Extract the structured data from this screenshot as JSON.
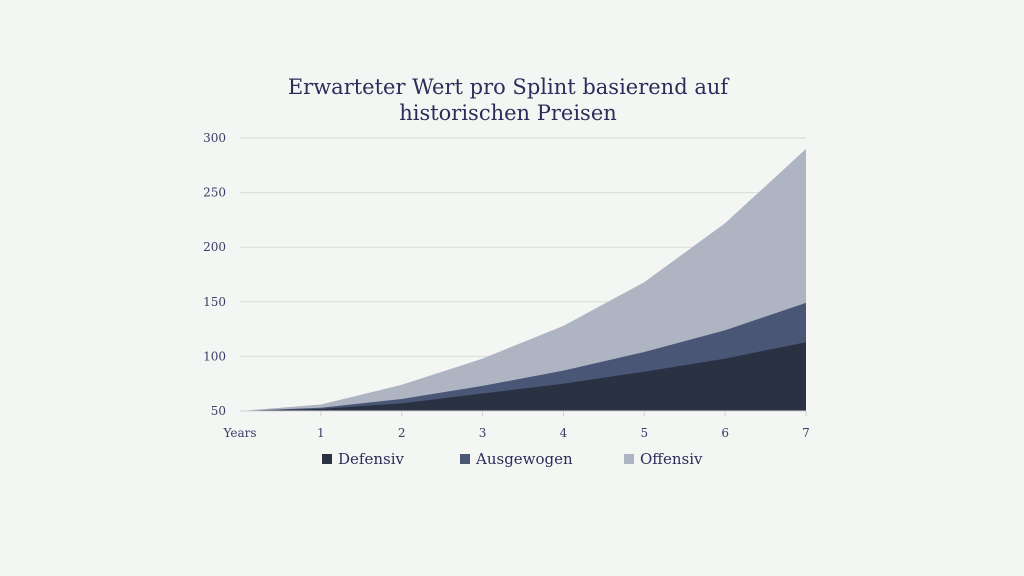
{
  "chart_data": {
    "type": "area",
    "stacked": false,
    "title_lines": [
      "Erwarteter Wert pro Splint basierend auf",
      "historischen Preisen"
    ],
    "xlabel": "Years",
    "x": [
      0,
      1,
      2,
      3,
      4,
      5,
      6,
      7
    ],
    "x_tick_labels": [
      "Years",
      "1",
      "2",
      "3",
      "4",
      "5",
      "6",
      "7"
    ],
    "ylim": [
      50,
      300
    ],
    "y_ticks": [
      50,
      100,
      150,
      200,
      250,
      300
    ],
    "grid": "horizontal",
    "legend_position": "bottom",
    "series": [
      {
        "name": "Offensiv",
        "color": "#aeb4c1",
        "values": [
          50,
          56,
          74,
          98,
          128,
          168,
          222,
          290
        ]
      },
      {
        "name": "Ausgewogen",
        "color": "#4a5675",
        "values": [
          50,
          53,
          61,
          73,
          87,
          104,
          124,
          149
        ]
      },
      {
        "name": "Defensiv",
        "color": "#293143",
        "values": [
          50,
          52,
          57,
          66,
          75,
          86,
          98,
          113
        ]
      }
    ],
    "legend_order": [
      "Defensiv",
      "Ausgewogen",
      "Offensiv"
    ]
  }
}
